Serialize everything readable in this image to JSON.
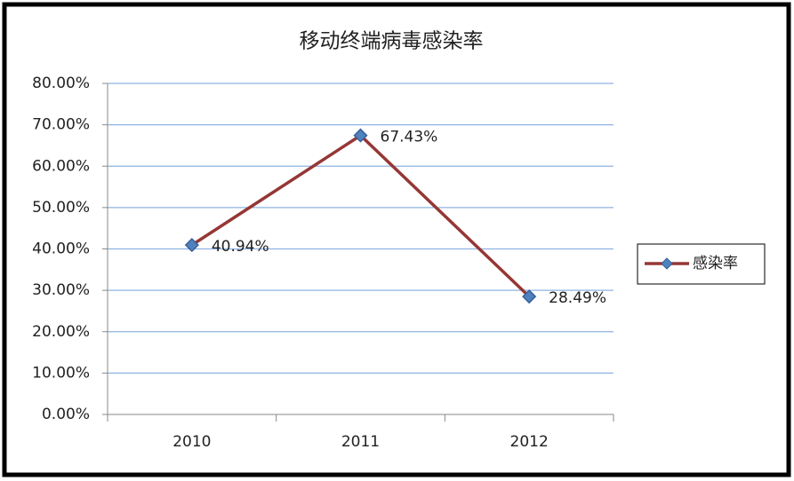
{
  "chart_data": {
    "type": "line",
    "title": "移动终端病毒感染率",
    "categories": [
      "2010",
      "2011",
      "2012"
    ],
    "series": [
      {
        "name": "感染率",
        "color": "#953735",
        "marker_color": "#4f81bd",
        "values": [
          40.94,
          67.43,
          28.49
        ],
        "value_labels": [
          "40.94%",
          "67.43%",
          "28.49%"
        ]
      }
    ],
    "ylim": [
      0,
      80
    ],
    "yticks": [
      {
        "value": 0,
        "label": "0.00%"
      },
      {
        "value": 10,
        "label": "10.00%"
      },
      {
        "value": 20,
        "label": "20.00%"
      },
      {
        "value": 30,
        "label": "30.00%"
      },
      {
        "value": 40,
        "label": "40.00%"
      },
      {
        "value": 50,
        "label": "50.00%"
      },
      {
        "value": 60,
        "label": "60.00%"
      },
      {
        "value": 70,
        "label": "70.00%"
      },
      {
        "value": 80,
        "label": "80.00%"
      }
    ],
    "grid": true,
    "legend": "right"
  }
}
